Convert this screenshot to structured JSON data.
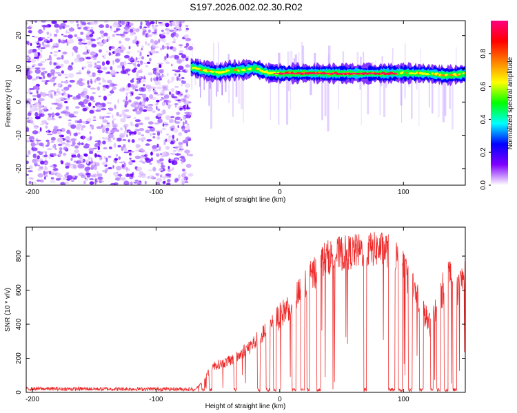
{
  "title": "S197.2026.002.02.30.R02",
  "chart_data": [
    {
      "type": "heatmap",
      "panel": "spectrogram",
      "xlabel": "Height of straight line (km)",
      "ylabel": "Frequency (Hz)",
      "xlim": [
        -205,
        150
      ],
      "ylim": [
        -25,
        24.5
      ],
      "xticks": [
        -200,
        -100,
        0,
        100
      ],
      "yticks": [
        -20,
        -10,
        0,
        10,
        20
      ],
      "noise_region_x": [
        -205,
        -72
      ],
      "carrier_start_x": -72,
      "carrier_frequency_track": [
        {
          "x": -72,
          "f": 10.5
        },
        {
          "x": -60,
          "f": 9.5
        },
        {
          "x": -50,
          "f": 8.8
        },
        {
          "x": -40,
          "f": 9.5
        },
        {
          "x": -30,
          "f": 9.6
        },
        {
          "x": -20,
          "f": 10.2
        },
        {
          "x": -10,
          "f": 8.8
        },
        {
          "x": 0,
          "f": 8.6
        },
        {
          "x": 20,
          "f": 8.7
        },
        {
          "x": 40,
          "f": 8.6
        },
        {
          "x": 60,
          "f": 8.6
        },
        {
          "x": 80,
          "f": 8.6
        },
        {
          "x": 100,
          "f": 8.7
        },
        {
          "x": 120,
          "f": 8.6
        },
        {
          "x": 135,
          "f": 8.0
        },
        {
          "x": 150,
          "f": 8.5
        }
      ],
      "colorbar": {
        "label": "Normalized spectral amplitude",
        "range": [
          0,
          1
        ],
        "ticks": [
          0.0,
          0.2,
          0.4,
          0.6,
          0.8
        ],
        "colors": [
          "#ffffff",
          "#8000ff",
          "#0000ff",
          "#00ffff",
          "#00ff00",
          "#ffff00",
          "#ff8000",
          "#ff0000",
          "#ff0080"
        ]
      }
    },
    {
      "type": "line",
      "panel": "snr",
      "xlabel": "Height of straight line (km)",
      "ylabel": "SNR (10 * v/v)",
      "xlim": [
        -205,
        150
      ],
      "ylim": [
        0,
        970
      ],
      "xticks": [
        -200,
        -100,
        0,
        100
      ],
      "yticks": [
        0,
        200,
        400,
        600,
        800
      ],
      "line_color": "#ee2a2a",
      "envelope": [
        {
          "x": -205,
          "y": 10
        },
        {
          "x": -70,
          "y": 8
        },
        {
          "x": -62,
          "y": 60
        },
        {
          "x": -55,
          "y": 150
        },
        {
          "x": -45,
          "y": 170
        },
        {
          "x": -35,
          "y": 200
        },
        {
          "x": -25,
          "y": 260
        },
        {
          "x": -15,
          "y": 320
        },
        {
          "x": -5,
          "y": 400
        },
        {
          "x": 5,
          "y": 480
        },
        {
          "x": 15,
          "y": 560
        },
        {
          "x": 25,
          "y": 660
        },
        {
          "x": 35,
          "y": 770
        },
        {
          "x": 45,
          "y": 800
        },
        {
          "x": 55,
          "y": 810
        },
        {
          "x": 65,
          "y": 820
        },
        {
          "x": 75,
          "y": 830
        },
        {
          "x": 85,
          "y": 830
        },
        {
          "x": 92,
          "y": 810
        },
        {
          "x": 100,
          "y": 720
        },
        {
          "x": 108,
          "y": 600
        },
        {
          "x": 115,
          "y": 480
        },
        {
          "x": 122,
          "y": 380
        },
        {
          "x": 130,
          "y": 550
        },
        {
          "x": 137,
          "y": 720
        },
        {
          "x": 143,
          "y": 560
        },
        {
          "x": 150,
          "y": 700
        }
      ],
      "dropouts": [
        {
          "x": -63,
          "w": 2
        },
        {
          "x": -57,
          "w": 2
        },
        {
          "x": -37,
          "w": 2
        },
        {
          "x": -18,
          "w": 2
        },
        {
          "x": -11,
          "w": 3
        },
        {
          "x": -5,
          "w": 2
        },
        {
          "x": 10,
          "w": 3
        },
        {
          "x": 17,
          "w": 3
        },
        {
          "x": 22,
          "w": 2
        },
        {
          "x": 30,
          "w": 3
        },
        {
          "x": 68,
          "w": 2
        },
        {
          "x": 88,
          "w": 5
        },
        {
          "x": 96,
          "w": 3
        },
        {
          "x": 104,
          "w": 3
        },
        {
          "x": 113,
          "w": 3
        },
        {
          "x": 122,
          "w": 2
        },
        {
          "x": 127,
          "w": 3
        },
        {
          "x": 133,
          "w": 3
        },
        {
          "x": 140,
          "w": 3
        }
      ]
    }
  ]
}
